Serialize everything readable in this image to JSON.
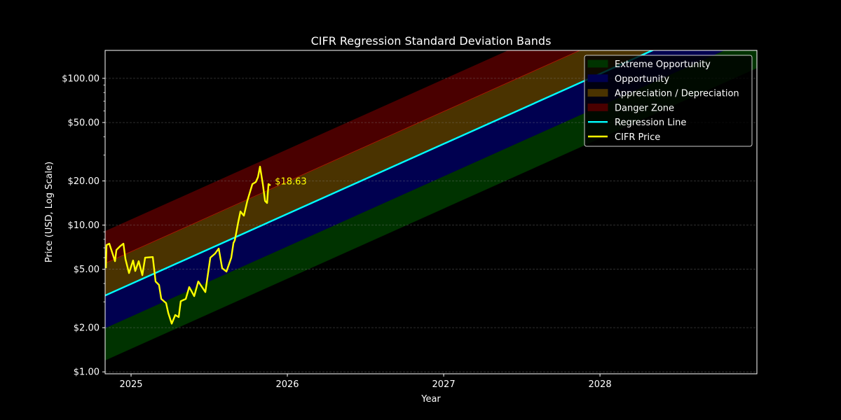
{
  "chart_data": {
    "type": "line",
    "title": "CIFR Regression Standard Deviation Bands",
    "xlabel": "Year",
    "ylabel": "Price (USD, Log Scale)",
    "yscale": "log",
    "xlim": [
      2024.834,
      2029.004
    ],
    "ylim": [
      0.97,
      155
    ],
    "x_ticks": [
      2025,
      2026,
      2027,
      2028
    ],
    "x_tick_labels": [
      "2025",
      "2026",
      "2027",
      "2028"
    ],
    "y_ticks": [
      1,
      2,
      5,
      10,
      20,
      50,
      100
    ],
    "y_tick_labels": [
      "$1.00",
      "$2.00",
      "$5.00",
      "$10.00",
      "$20.00",
      "$50.00",
      "$100.00"
    ],
    "grid": {
      "y": true,
      "x": false,
      "style": "dashed"
    },
    "legend_position": "upper right",
    "regression": {
      "x_start": 2024.834,
      "price_at_start": 3.31,
      "log10_slope_per_year": 0.4777,
      "sigma_log10": 0.2196
    },
    "bands": [
      {
        "name": "Extreme Opportunity",
        "from_sigma": -2,
        "to_sigma": -1,
        "color": "#003300"
      },
      {
        "name": "Opportunity",
        "from_sigma": -1,
        "to_sigma": 0,
        "color": "#000050"
      },
      {
        "name": "Appreciation / Depreciation",
        "from_sigma": 0,
        "to_sigma": 1,
        "color": "#4a3300"
      },
      {
        "name": "Danger Zone",
        "from_sigma": 1,
        "to_sigma": 2,
        "color": "#4a0000"
      }
    ],
    "series": [
      {
        "name": "Regression Line",
        "color": "#00ffff",
        "x": [
          2024.834,
          2029.004
        ],
        "values": [
          3.31,
          323.0
        ]
      },
      {
        "name": "CIFR Price",
        "color": "#ffff00",
        "x": [
          2024.839,
          2024.843,
          2024.861,
          2024.874,
          2024.897,
          2024.906,
          2024.928,
          2024.951,
          2024.964,
          2024.987,
          2025.013,
          2025.027,
          2025.049,
          2025.072,
          2025.09,
          2025.139,
          2025.157,
          2025.179,
          2025.193,
          2025.224,
          2025.238,
          2025.26,
          2025.283,
          2025.305,
          2025.318,
          2025.35,
          2025.372,
          2025.404,
          2025.43,
          2025.475,
          2025.507,
          2025.538,
          2025.561,
          2025.583,
          2025.61,
          2025.641,
          2025.655,
          2025.664,
          2025.686,
          2025.7,
          2025.722,
          2025.744,
          2025.776,
          2025.798,
          2025.812,
          2025.825,
          2025.843,
          2025.857,
          2025.87,
          2025.879,
          2025.892
        ],
        "values": [
          5.09,
          7.31,
          7.47,
          6.77,
          5.68,
          6.77,
          7.15,
          7.47,
          5.87,
          4.71,
          5.74,
          4.87,
          5.68,
          4.56,
          6.0,
          6.06,
          4.13,
          3.91,
          3.14,
          2.94,
          2.52,
          2.13,
          2.44,
          2.36,
          3.03,
          3.14,
          3.78,
          3.28,
          4.13,
          3.5,
          6.0,
          6.41,
          6.92,
          5.09,
          4.82,
          6.0,
          7.55,
          7.9,
          10.51,
          12.39,
          11.6,
          14.61,
          19.02,
          19.66,
          21.23,
          25.04,
          19.02,
          14.61,
          14.14,
          19.02,
          18.63
        ]
      }
    ],
    "annotations": [
      {
        "text": "$18.63",
        "x": 2025.92,
        "y": 19.8,
        "color": "#ffff00"
      }
    ]
  },
  "legend": {
    "items": [
      {
        "label": "Extreme Opportunity",
        "kind": "patch",
        "color": "#003300"
      },
      {
        "label": "Opportunity",
        "kind": "patch",
        "color": "#000050"
      },
      {
        "label": "Appreciation / Depreciation",
        "kind": "patch",
        "color": "#4a3300"
      },
      {
        "label": "Danger Zone",
        "kind": "patch",
        "color": "#4a0000"
      },
      {
        "label": "Regression Line",
        "kind": "line",
        "color": "#00ffff"
      },
      {
        "label": "CIFR Price",
        "kind": "line",
        "color": "#ffff00"
      }
    ]
  }
}
